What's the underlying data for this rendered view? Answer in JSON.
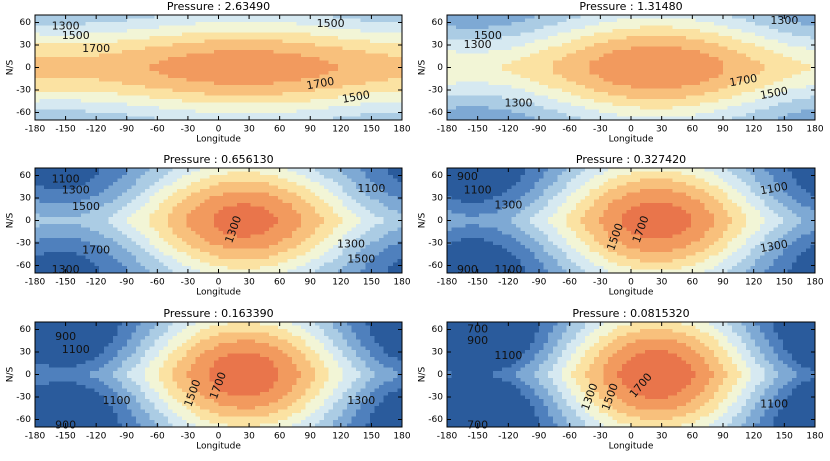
{
  "chart_data": [
    {
      "type": "contour",
      "title": "Pressure : 2.63490",
      "xlabel": "Longitude",
      "ylabel": "N/S",
      "xlim": [
        -180,
        180
      ],
      "xticks": [
        -180,
        -150,
        -120,
        -90,
        -60,
        -30,
        0,
        30,
        60,
        90,
        120,
        150,
        180
      ],
      "ylim": [
        -70,
        70
      ],
      "yticks": [
        60,
        30,
        0,
        -30,
        -60
      ],
      "contour_labels": [
        1300,
        1500,
        1700,
        1500,
        1700,
        1500
      ]
    },
    {
      "type": "contour",
      "title": "Pressure : 1.31480",
      "xlabel": "Longitude",
      "ylabel": "N/S",
      "xlim": [
        -180,
        180
      ],
      "xticks": [
        -180,
        -150,
        -120,
        -90,
        -60,
        -30,
        0,
        30,
        60,
        90,
        120,
        150,
        180
      ],
      "ylim": [
        -70,
        70
      ],
      "yticks": [
        60,
        30,
        0,
        -30,
        -60
      ],
      "contour_labels": [
        1300,
        1500,
        1300,
        1700,
        1500,
        1300
      ]
    },
    {
      "type": "contour",
      "title": "Pressure : 0.656130",
      "xlabel": "Longitude",
      "ylabel": "N/S",
      "xlim": [
        -180,
        180
      ],
      "xticks": [
        -180,
        -150,
        -120,
        -90,
        -60,
        -30,
        0,
        30,
        60,
        90,
        120,
        150,
        180
      ],
      "ylim": [
        -70,
        70
      ],
      "yticks": [
        60,
        30,
        0,
        -30,
        -60
      ],
      "contour_labels": [
        1100,
        1300,
        1500,
        1300,
        1700,
        1300,
        1500,
        1300,
        1100
      ]
    },
    {
      "type": "contour",
      "title": "Pressure : 0.327420",
      "xlabel": "Longitude",
      "ylabel": "N/S",
      "xlim": [
        -180,
        180
      ],
      "xticks": [
        -180,
        -150,
        -120,
        -90,
        -60,
        -30,
        0,
        30,
        60,
        90,
        120,
        150,
        180
      ],
      "ylim": [
        -70,
        70
      ],
      "yticks": [
        60,
        30,
        0,
        -30,
        -60
      ],
      "contour_labels": [
        900,
        1100,
        1300,
        1500,
        1700,
        1100,
        1300,
        900,
        1100
      ]
    },
    {
      "type": "contour",
      "title": "Pressure : 0.163390",
      "xlabel": "Longitude",
      "ylabel": "N/S",
      "xlim": [
        -180,
        180
      ],
      "xticks": [
        -180,
        -150,
        -120,
        -90,
        -60,
        -30,
        0,
        30,
        60,
        90,
        120,
        150,
        180
      ],
      "ylim": [
        -70,
        70
      ],
      "yticks": [
        60,
        30,
        0,
        -30,
        -60
      ],
      "contour_labels": [
        900,
        1100,
        1100,
        1500,
        1700,
        1300,
        900
      ]
    },
    {
      "type": "contour",
      "title": "Pressure : 0.0815320",
      "xlabel": "Longitude",
      "ylabel": "N/S",
      "xlim": [
        -180,
        180
      ],
      "xticks": [
        -180,
        -150,
        -120,
        -90,
        -60,
        -30,
        0,
        30,
        60,
        90,
        120,
        150,
        180
      ],
      "ylim": [
        -70,
        70
      ],
      "yticks": [
        60,
        30,
        0,
        -30,
        -60
      ],
      "contour_labels": [
        700,
        900,
        1100,
        1300,
        1500,
        1700,
        1100,
        700
      ]
    }
  ]
}
